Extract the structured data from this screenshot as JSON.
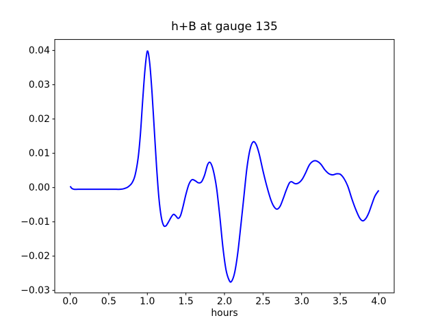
{
  "figure": {
    "background_color": "#ffffff",
    "spine_color": "#000000",
    "tick_color": "#000000"
  },
  "chart_data": {
    "type": "line",
    "title": "h+B at gauge 135",
    "xlabel": "hours",
    "ylabel": "",
    "legend": "none",
    "grid": false,
    "line_color": "#0000ff",
    "xlim": [
      -0.2,
      4.2
    ],
    "ylim": [
      -0.0307,
      0.0432
    ],
    "x_tick_values": [
      0.0,
      0.5,
      1.0,
      1.5,
      2.0,
      2.5,
      3.0,
      3.5,
      4.0
    ],
    "x_tick_labels": [
      "0.0",
      "0.5",
      "1.0",
      "1.5",
      "2.0",
      "2.5",
      "3.0",
      "3.5",
      "4.0"
    ],
    "y_tick_values": [
      -0.03,
      -0.02,
      -0.01,
      0.0,
      0.01,
      0.02,
      0.03,
      0.04
    ],
    "y_tick_labels": [
      "−0.03",
      "−0.02",
      "−0.01",
      "0.00",
      "0.01",
      "0.02",
      "0.03",
      "0.04"
    ],
    "series": [
      {
        "name": "h+B",
        "points": [
          [
            0.0,
            0.0004
          ],
          [
            0.02,
            -0.0002
          ],
          [
            0.05,
            -0.0005
          ],
          [
            0.1,
            -0.0005
          ],
          [
            0.15,
            -0.0005
          ],
          [
            0.2,
            -0.0005
          ],
          [
            0.25,
            -0.0005
          ],
          [
            0.3,
            -0.0005
          ],
          [
            0.35,
            -0.0005
          ],
          [
            0.4,
            -0.0005
          ],
          [
            0.45,
            -0.0005
          ],
          [
            0.5,
            -0.0005
          ],
          [
            0.55,
            -0.0005
          ],
          [
            0.6,
            -0.0005
          ],
          [
            0.65,
            -0.0005
          ],
          [
            0.7,
            -0.0003
          ],
          [
            0.75,
            0.0002
          ],
          [
            0.8,
            0.0013
          ],
          [
            0.84,
            0.0035
          ],
          [
            0.88,
            0.0085
          ],
          [
            0.91,
            0.0155
          ],
          [
            0.94,
            0.0255
          ],
          [
            0.97,
            0.0345
          ],
          [
            1.0,
            0.0398
          ],
          [
            1.03,
            0.0365
          ],
          [
            1.06,
            0.028
          ],
          [
            1.09,
            0.017
          ],
          [
            1.12,
            0.006
          ],
          [
            1.15,
            -0.003
          ],
          [
            1.18,
            -0.0085
          ],
          [
            1.21,
            -0.011
          ],
          [
            1.24,
            -0.0112
          ],
          [
            1.27,
            -0.0102
          ],
          [
            1.31,
            -0.0086
          ],
          [
            1.34,
            -0.0078
          ],
          [
            1.37,
            -0.0083
          ],
          [
            1.4,
            -0.009
          ],
          [
            1.43,
            -0.0082
          ],
          [
            1.46,
            -0.0058
          ],
          [
            1.5,
            -0.002
          ],
          [
            1.54,
            0.001
          ],
          [
            1.58,
            0.0023
          ],
          [
            1.62,
            0.002
          ],
          [
            1.66,
            0.0014
          ],
          [
            1.7,
            0.0016
          ],
          [
            1.74,
            0.0035
          ],
          [
            1.78,
            0.0066
          ],
          [
            1.81,
            0.0074
          ],
          [
            1.84,
            0.0062
          ],
          [
            1.87,
            0.0035
          ],
          [
            1.9,
            -0.0005
          ],
          [
            1.94,
            -0.0085
          ],
          [
            1.98,
            -0.0175
          ],
          [
            2.02,
            -0.024
          ],
          [
            2.06,
            -0.027
          ],
          [
            2.09,
            -0.0274
          ],
          [
            2.13,
            -0.025
          ],
          [
            2.17,
            -0.0195
          ],
          [
            2.21,
            -0.0115
          ],
          [
            2.25,
            -0.003
          ],
          [
            2.29,
            0.0055
          ],
          [
            2.33,
            0.011
          ],
          [
            2.37,
            0.0133
          ],
          [
            2.41,
            0.0126
          ],
          [
            2.45,
            0.0098
          ],
          [
            2.5,
            0.0048
          ],
          [
            2.55,
            0.0003
          ],
          [
            2.6,
            -0.0035
          ],
          [
            2.64,
            -0.0055
          ],
          [
            2.68,
            -0.0063
          ],
          [
            2.72,
            -0.0055
          ],
          [
            2.76,
            -0.0033
          ],
          [
            2.8,
            -0.0008
          ],
          [
            2.84,
            0.0013
          ],
          [
            2.87,
            0.0017
          ],
          [
            2.9,
            0.0013
          ],
          [
            2.93,
            0.0011
          ],
          [
            2.97,
            0.0015
          ],
          [
            3.01,
            0.0025
          ],
          [
            3.05,
            0.0042
          ],
          [
            3.1,
            0.0066
          ],
          [
            3.15,
            0.0077
          ],
          [
            3.2,
            0.0077
          ],
          [
            3.25,
            0.0068
          ],
          [
            3.3,
            0.0052
          ],
          [
            3.35,
            0.0041
          ],
          [
            3.4,
            0.0037
          ],
          [
            3.45,
            0.004
          ],
          [
            3.5,
            0.0039
          ],
          [
            3.55,
            0.0026
          ],
          [
            3.6,
            0.0003
          ],
          [
            3.65,
            -0.0032
          ],
          [
            3.7,
            -0.0063
          ],
          [
            3.75,
            -0.0088
          ],
          [
            3.79,
            -0.0097
          ],
          [
            3.83,
            -0.0091
          ],
          [
            3.87,
            -0.0074
          ],
          [
            3.91,
            -0.0049
          ],
          [
            3.95,
            -0.0025
          ],
          [
            4.0,
            -0.0008
          ]
        ]
      }
    ]
  }
}
